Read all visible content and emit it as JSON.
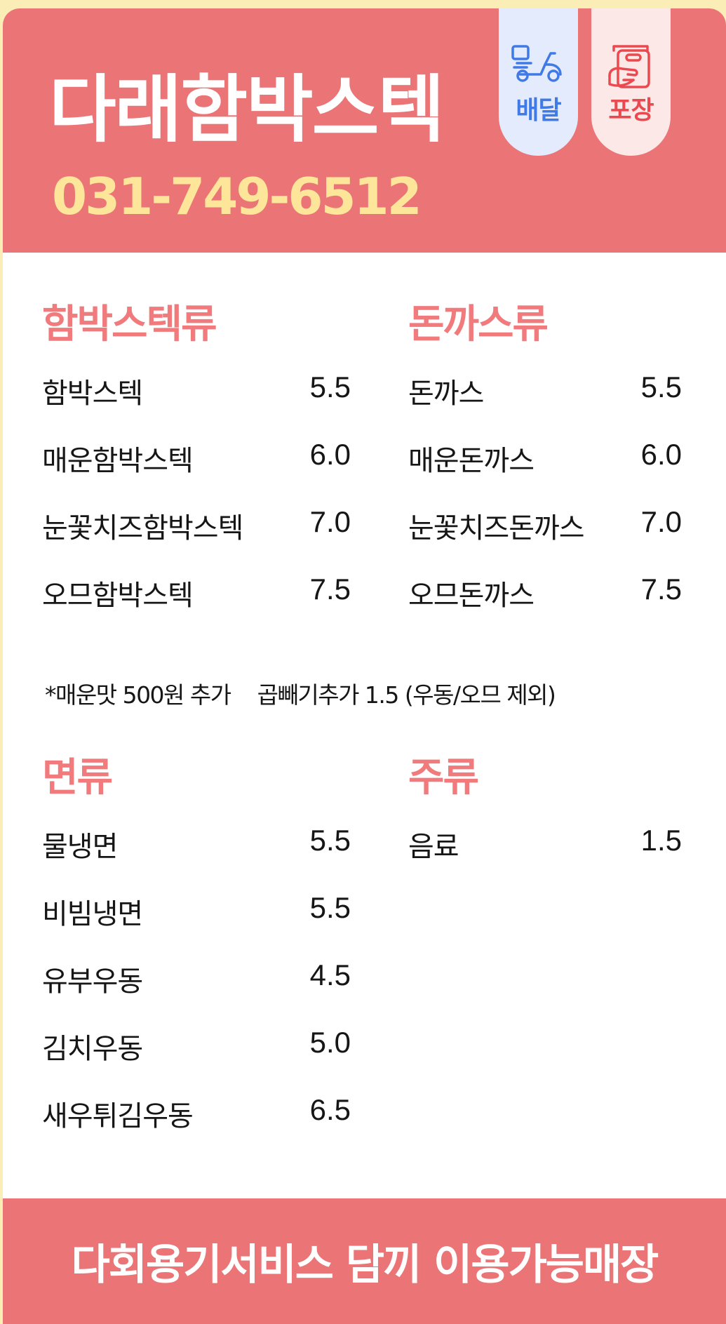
{
  "header": {
    "store_name": "다래함박스텍",
    "phone": "031-749-6512",
    "tags": [
      {
        "label": "배달",
        "icon": "scooter-icon",
        "color": "#3f7ae6"
      },
      {
        "label": "포장",
        "icon": "takeout-bag-icon",
        "color": "#ea4a4f"
      }
    ]
  },
  "sections": [
    {
      "title": "함박스텍류",
      "items": [
        {
          "name": "함박스텍",
          "price": "5.5"
        },
        {
          "name": "매운함박스텍",
          "price": "6.0"
        },
        {
          "name": "눈꽃치즈함박스텍",
          "price": "7.0"
        },
        {
          "name": "오므함박스텍",
          "price": "7.5"
        }
      ]
    },
    {
      "title": "돈까스류",
      "items": [
        {
          "name": "돈까스",
          "price": "5.5"
        },
        {
          "name": "매운돈까스",
          "price": "6.0"
        },
        {
          "name": "눈꽃치즈돈까스",
          "price": "7.0"
        },
        {
          "name": "오므돈까스",
          "price": "7.5"
        }
      ]
    },
    {
      "title": "면류",
      "items": [
        {
          "name": "물냉면",
          "price": "5.5"
        },
        {
          "name": "비빔냉면",
          "price": "5.5"
        },
        {
          "name": "유부우동",
          "price": "4.5"
        },
        {
          "name": "김치우동",
          "price": "5.0"
        },
        {
          "name": "새우튀김우동",
          "price": "6.5"
        }
      ]
    },
    {
      "title": "주류",
      "items": [
        {
          "name": "음료",
          "price": "1.5"
        }
      ]
    }
  ],
  "notes": [
    "*매운맛 500원 추가",
    "곱빼기추가 1.5 (우동/오므 제외)"
  ],
  "footer": {
    "text": "다회용기서비스 담끼 이용가능매장"
  },
  "colors": {
    "header_bg": "#eb7576",
    "page_bg": "#fbedb6",
    "phone": "#fde69a",
    "section_title": "#f17a7d"
  }
}
